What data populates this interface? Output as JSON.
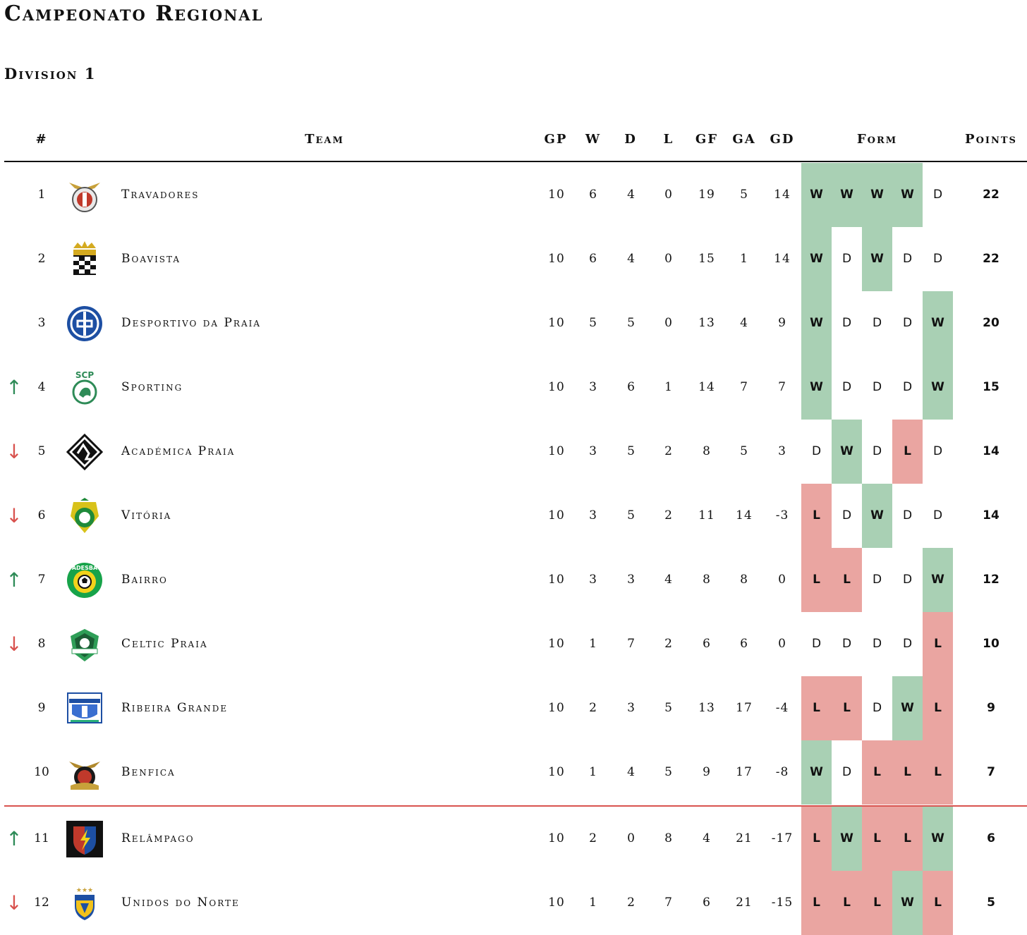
{
  "title": "Campeonato Regional",
  "subtitle": "Division 1",
  "columns": {
    "rank": "#",
    "team": "Team",
    "gp": "GP",
    "w": "W",
    "d": "D",
    "l": "L",
    "gf": "GF",
    "ga": "GA",
    "gd": "GD",
    "form": "Form",
    "points": "Points"
  },
  "colors": {
    "win": "#a9d0b4",
    "loss": "#eaa5a1",
    "up": "#2e8b57",
    "down": "#d9534f",
    "relegation_line": "#d9534f"
  },
  "rows": [
    {
      "rank": "1",
      "trend": "",
      "team": "Travadores",
      "logo": "eagle-crest-icon",
      "gp": "10",
      "w": "6",
      "d": "4",
      "l": "0",
      "gf": "19",
      "ga": "5",
      "gd": "14",
      "form": [
        "W",
        "W",
        "W",
        "W",
        "D"
      ],
      "points": "22"
    },
    {
      "rank": "2",
      "trend": "",
      "team": "Boavista",
      "logo": "checkered-crown-crest-icon",
      "gp": "10",
      "w": "6",
      "d": "4",
      "l": "0",
      "gf": "15",
      "ga": "1",
      "gd": "14",
      "form": [
        "W",
        "D",
        "W",
        "D",
        "D"
      ],
      "points": "22"
    },
    {
      "rank": "3",
      "trend": "",
      "team": "Desportivo da Praia",
      "logo": "blue-circle-crest-icon",
      "gp": "10",
      "w": "5",
      "d": "5",
      "l": "0",
      "gf": "13",
      "ga": "4",
      "gd": "9",
      "form": [
        "W",
        "D",
        "D",
        "D",
        "W"
      ],
      "points": "20"
    },
    {
      "rank": "4",
      "trend": "↑",
      "team": "Sporting",
      "logo": "green-lion-crest-icon",
      "gp": "10",
      "w": "3",
      "d": "6",
      "l": "1",
      "gf": "14",
      "ga": "7",
      "gd": "7",
      "form": [
        "W",
        "D",
        "D",
        "D",
        "W"
      ],
      "points": "15"
    },
    {
      "rank": "5",
      "trend": "↓",
      "team": "Académica Praia",
      "logo": "black-diamond-crest-icon",
      "gp": "10",
      "w": "3",
      "d": "5",
      "l": "2",
      "gf": "8",
      "ga": "5",
      "gd": "3",
      "form": [
        "D",
        "W",
        "D",
        "L",
        "D"
      ],
      "points": "14"
    },
    {
      "rank": "6",
      "trend": "↓",
      "team": "Vitória",
      "logo": "yellow-green-crest-icon",
      "gp": "10",
      "w": "3",
      "d": "5",
      "l": "2",
      "gf": "11",
      "ga": "14",
      "gd": "-3",
      "form": [
        "L",
        "D",
        "W",
        "D",
        "D"
      ],
      "points": "14"
    },
    {
      "rank": "7",
      "trend": "↑",
      "team": "Bairro",
      "logo": "green-ball-crest-icon",
      "gp": "10",
      "w": "3",
      "d": "3",
      "l": "4",
      "gf": "8",
      "ga": "8",
      "gd": "0",
      "form": [
        "L",
        "L",
        "D",
        "D",
        "W"
      ],
      "points": "12"
    },
    {
      "rank": "8",
      "trend": "↓",
      "team": "Celtic Praia",
      "logo": "celtic-shield-crest-icon",
      "gp": "10",
      "w": "1",
      "d": "7",
      "l": "2",
      "gf": "6",
      "ga": "6",
      "gd": "0",
      "form": [
        "D",
        "D",
        "D",
        "D",
        "L"
      ],
      "points": "10"
    },
    {
      "rank": "9",
      "trend": "",
      "team": "Ribeira Grande",
      "logo": "blue-shield-crest-icon",
      "gp": "10",
      "w": "2",
      "d": "3",
      "l": "5",
      "gf": "13",
      "ga": "17",
      "gd": "-4",
      "form": [
        "L",
        "L",
        "D",
        "W",
        "L"
      ],
      "points": "9"
    },
    {
      "rank": "10",
      "trend": "",
      "team": "Benfica",
      "logo": "eagle-red-crest-icon",
      "gp": "10",
      "w": "1",
      "d": "4",
      "l": "5",
      "gf": "9",
      "ga": "17",
      "gd": "-8",
      "form": [
        "W",
        "D",
        "L",
        "L",
        "L"
      ],
      "points": "7"
    },
    {
      "rank": "11",
      "trend": "↑",
      "team": "Relâmpago",
      "logo": "lightning-shield-crest-icon",
      "gp": "10",
      "w": "2",
      "d": "0",
      "l": "8",
      "gf": "4",
      "ga": "21",
      "gd": "-17",
      "form": [
        "L",
        "W",
        "L",
        "L",
        "W"
      ],
      "points": "6"
    },
    {
      "rank": "12",
      "trend": "↓",
      "team": "Unidos do Norte",
      "logo": "stars-shield-crest-icon",
      "gp": "10",
      "w": "1",
      "d": "2",
      "l": "7",
      "gf": "6",
      "ga": "21",
      "gd": "-15",
      "form": [
        "L",
        "L",
        "L",
        "W",
        "L"
      ],
      "points": "5"
    }
  ]
}
